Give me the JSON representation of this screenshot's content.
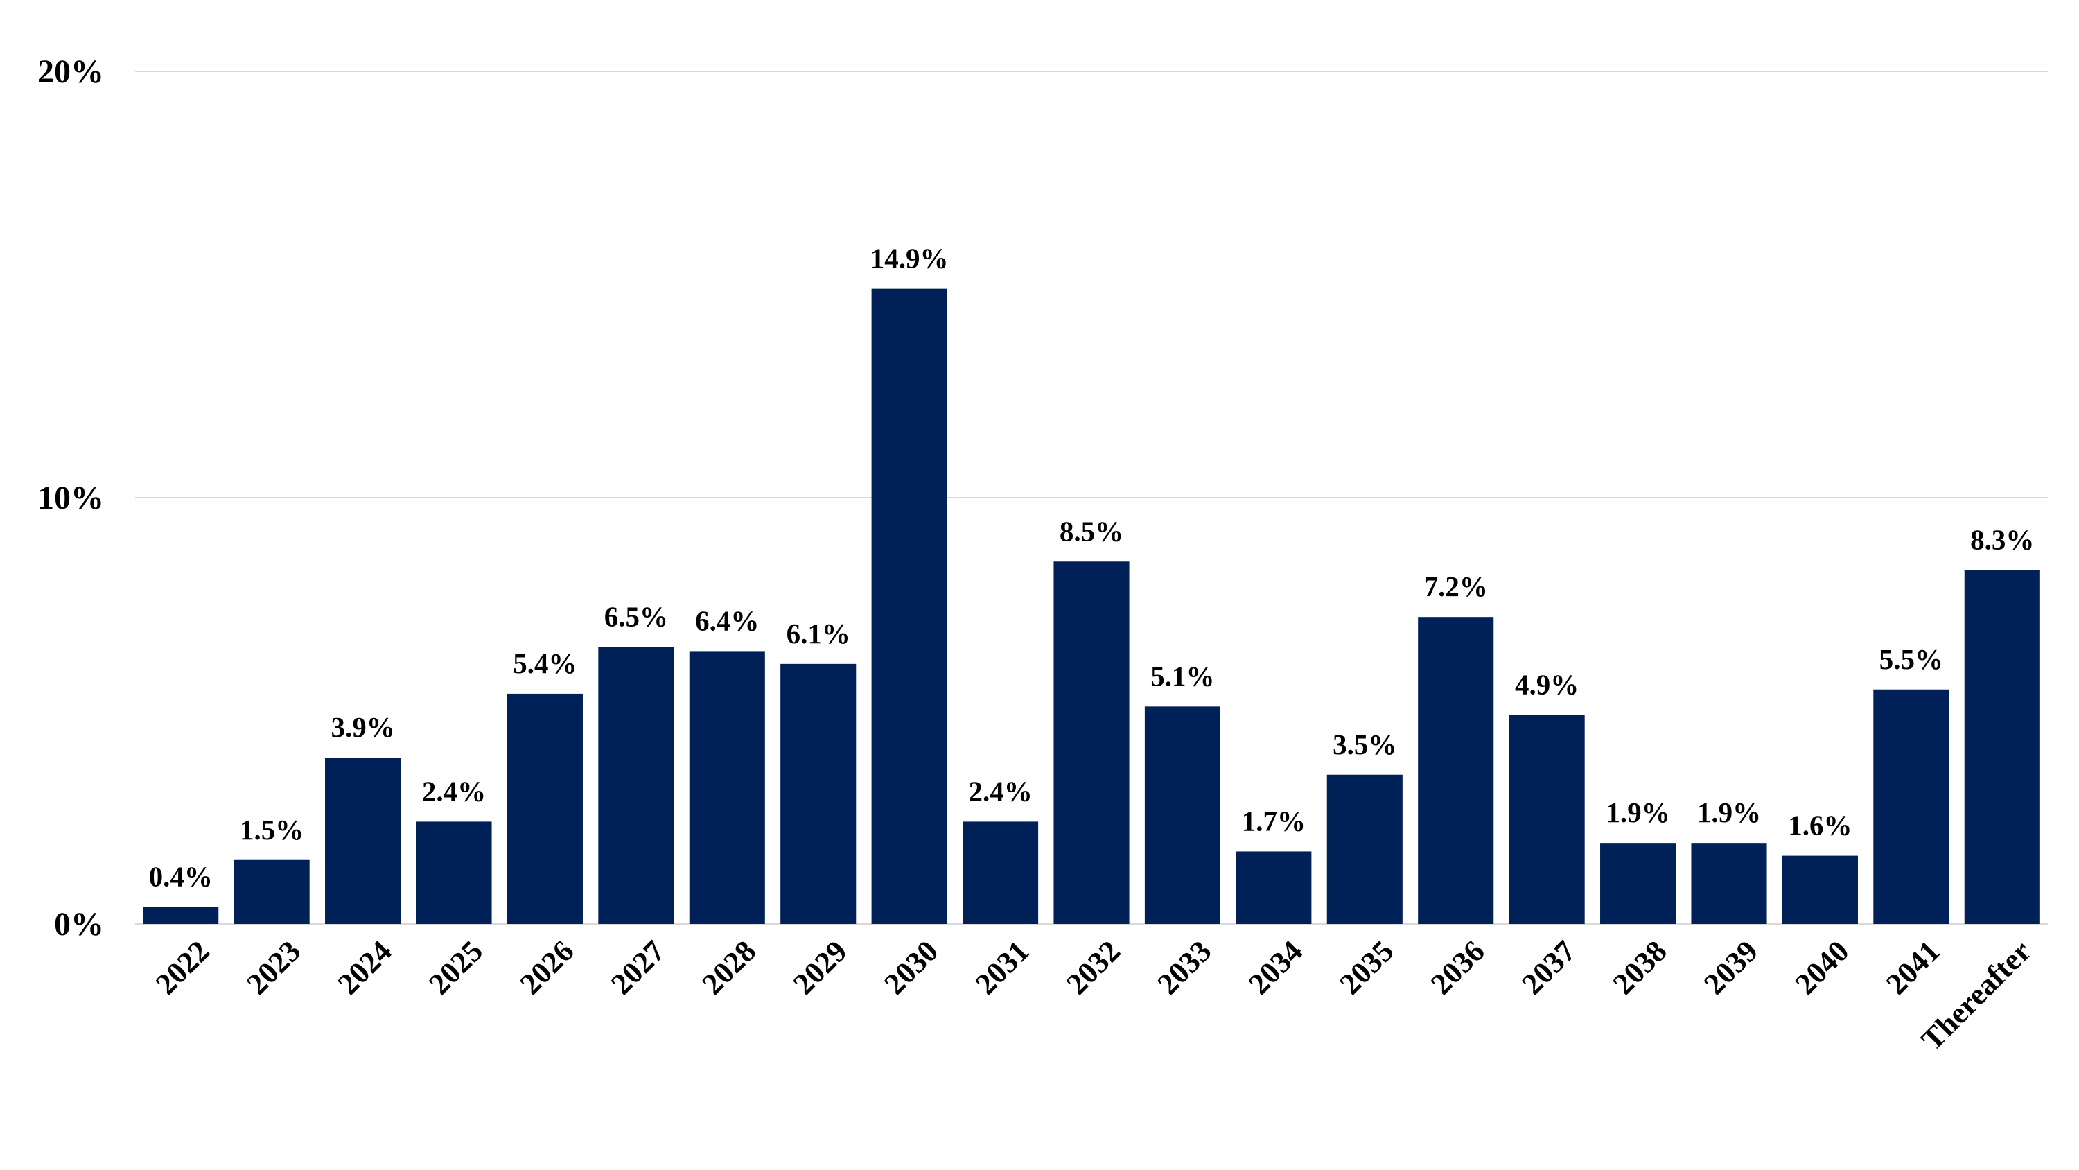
{
  "chart_data": {
    "type": "bar",
    "title": "",
    "xlabel": "",
    "ylabel": "",
    "categories": [
      "2022",
      "2023",
      "2024",
      "2025",
      "2026",
      "2027",
      "2028",
      "2029",
      "2030",
      "2031",
      "2032",
      "2033",
      "2034",
      "2035",
      "2036",
      "2037",
      "2038",
      "2039",
      "2040",
      "2041",
      "Thereafter"
    ],
    "values": [
      0.4,
      1.5,
      3.9,
      2.4,
      5.4,
      6.5,
      6.4,
      6.1,
      14.9,
      2.4,
      8.5,
      5.1,
      1.7,
      3.5,
      7.2,
      4.9,
      1.9,
      1.9,
      1.6,
      5.5,
      8.3
    ],
    "data_labels": [
      "0.4%",
      "1.5%",
      "3.9%",
      "2.4%",
      "5.4%",
      "6.5%",
      "6.4%",
      "6.1%",
      "14.9%",
      "2.4%",
      "8.5%",
      "5.1%",
      "1.7%",
      "3.5%",
      "7.2%",
      "4.9%",
      "1.9%",
      "1.9%",
      "1.6%",
      "5.5%",
      "8.3%"
    ],
    "ylim": [
      0,
      20
    ],
    "y_ticks": [
      0,
      10,
      20
    ],
    "y_tick_labels": [
      "0%",
      "10%",
      "20%"
    ],
    "grid": true,
    "legend": "none",
    "bar_color": "#002157",
    "grid_color": "#d9d9d9"
  }
}
